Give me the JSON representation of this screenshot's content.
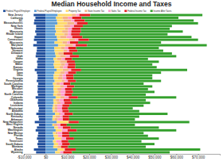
{
  "chart_data": {
    "type": "bar",
    "title": "Median Household Income and Taxes",
    "orientation": "horizontal",
    "stacked": true,
    "grid": false,
    "legend": "top",
    "categories": [
      "New Jersey",
      "California",
      "DC",
      "Massachusetts",
      "New York",
      "Illinois",
      "Minnesota",
      "Rhode Island",
      "Hawaii",
      "Connecticut",
      "Wisconsin",
      "Maryland",
      "Nebraska",
      "Vermont",
      "Delaware",
      "Utah",
      "Idaho",
      "Oregon",
      "Maine",
      "Kansas",
      "Virginia",
      "Iowa",
      "Ohio",
      "Georgia",
      "Pennsylvania",
      "South Carolina",
      "Michigan",
      "Missouri",
      "Arizona",
      "North Carolina",
      "Colorado",
      "Oklahoma",
      "Indiana",
      "Louisiana",
      "Mississippi",
      "Alabama",
      "North Dakota",
      "Kentucky",
      "Arkansas",
      "New Hampshire",
      "West Virginia",
      "Nevada",
      "Washington",
      "New Mexico",
      "Florida",
      "Texas",
      "Tennessee",
      "South Dakota",
      "Montana",
      "Alaska",
      "Wyoming"
    ],
    "series": [
      {
        "name": "Federal Payroll Employer",
        "color": "#1f4e9c",
        "values": [
          -5500,
          -4700,
          -5200,
          -5400,
          -4400,
          -4400,
          -4800,
          -4300,
          -5100,
          -5400,
          -4100,
          -5700,
          -4000,
          -4100,
          -4400,
          -4600,
          -3600,
          -4000,
          -3700,
          -3900,
          -5000,
          -4100,
          -3700,
          -3700,
          -4100,
          -3400,
          -3700,
          -3600,
          -3800,
          -3500,
          -4600,
          -3500,
          -3700,
          -3400,
          -3100,
          -3300,
          -4300,
          -3300,
          -3100,
          -5000,
          -3100,
          -4000,
          -4600,
          -3400,
          -3600,
          -4000,
          -3400,
          -3800,
          -3500,
          -5400,
          -4400
        ]
      },
      {
        "name": "Federal Payroll Employee",
        "color": "#5b9bd5",
        "values": [
          5500,
          4700,
          5200,
          5400,
          4400,
          4400,
          4800,
          4300,
          5100,
          5400,
          4100,
          5700,
          4000,
          4100,
          4400,
          4600,
          3600,
          4000,
          3700,
          3900,
          5000,
          4100,
          3700,
          3700,
          4100,
          3400,
          3700,
          3600,
          3800,
          3500,
          4600,
          3500,
          3700,
          3400,
          3100,
          3300,
          4300,
          3300,
          3100,
          5000,
          3100,
          4000,
          4600,
          3400,
          3600,
          4000,
          3400,
          3800,
          3500,
          5400,
          4400
        ]
      },
      {
        "name": "Property Tax",
        "color": "#ffd966",
        "values": [
          6500,
          3000,
          3000,
          4500,
          4000,
          4500,
          2800,
          4200,
          1500,
          5300,
          3600,
          3300,
          3000,
          4000,
          1400,
          2000,
          1700,
          2600,
          3300,
          2500,
          2800,
          2700,
          2500,
          2000,
          3200,
          1400,
          2900,
          1800,
          2000,
          1600,
          2100,
          1200,
          1600,
          800,
          1000,
          700,
          1800,
          1200,
          900,
          5600,
          800,
          1700,
          2800,
          1100,
          2100,
          3200,
          1400,
          2000,
          1900,
          3100,
          2200
        ]
      },
      {
        "name": "State Income Tax",
        "color": "#f4b183",
        "values": [
          2000,
          2500,
          3500,
          3300,
          2800,
          1500,
          2700,
          1800,
          3000,
          2800,
          2200,
          3600,
          1900,
          1700,
          2500,
          2700,
          2100,
          3200,
          1900,
          1700,
          2700,
          2000,
          1600,
          2100,
          1600,
          1800,
          1700,
          1800,
          1000,
          2000,
          2100,
          1500,
          1500,
          1200,
          1300,
          1500,
          700,
          2000,
          1600,
          0,
          1500,
          0,
          0,
          1000,
          0,
          0,
          0,
          0,
          1700,
          0,
          0
        ]
      },
      {
        "name": "Sales Tax",
        "color": "#ff99cc",
        "values": [
          1500,
          2000,
          1500,
          1200,
          1800,
          1700,
          1500,
          1400,
          2600,
          1500,
          1300,
          1200,
          1500,
          1000,
          0,
          1800,
          1500,
          0,
          1400,
          1900,
          1200,
          1500,
          1600,
          1700,
          1300,
          1600,
          1500,
          1700,
          2300,
          1700,
          1800,
          2100,
          1800,
          2300,
          2100,
          2200,
          1800,
          1300,
          2300,
          0,
          1400,
          2200,
          2700,
          2100,
          1900,
          2200,
          2500,
          1800,
          0,
          300,
          1500
        ]
      },
      {
        "name": "Federal Income Tax",
        "color": "#e31a1c",
        "values": [
          5000,
          4300,
          4800,
          4900,
          4100,
          4000,
          4400,
          3900,
          4700,
          4900,
          3700,
          5200,
          3600,
          3800,
          4100,
          4200,
          3300,
          3600,
          3400,
          3600,
          4600,
          3700,
          3400,
          3400,
          3700,
          3200,
          3400,
          3300,
          3500,
          3200,
          4200,
          3200,
          3400,
          3200,
          2800,
          3000,
          3900,
          3000,
          2900,
          4600,
          2900,
          3600,
          4200,
          3200,
          3300,
          3600,
          3100,
          3500,
          3200,
          5000,
          4000
        ]
      },
      {
        "name": "Income After Taxes",
        "color": "#33a02c",
        "values": [
          51500,
          44500,
          50000,
          50700,
          40900,
          40900,
          46800,
          40400,
          50100,
          50100,
          38100,
          55000,
          38000,
          39400,
          45600,
          44700,
          34800,
          38600,
          35300,
          37400,
          48700,
          39000,
          36200,
          36100,
          39100,
          33600,
          35800,
          34800,
          37400,
          34000,
          45200,
          34500,
          36000,
          34100,
          29700,
          32300,
          43500,
          32200,
          30200,
          50800,
          31300,
          40500,
          45700,
          34200,
          36100,
          39000,
          33600,
          38900,
          35700,
          57200,
          44900
        ]
      }
    ],
    "xlim": [
      -10000,
      80000
    ],
    "xticks": [
      {
        "value": -10000,
        "label": "-$10,000"
      },
      {
        "value": 0,
        "label": "$0"
      },
      {
        "value": 10000,
        "label": "$10,000"
      },
      {
        "value": 20000,
        "label": "$20,000"
      },
      {
        "value": 30000,
        "label": "$30,000"
      },
      {
        "value": 40000,
        "label": "$40,000"
      },
      {
        "value": 50000,
        "label": "$50,000"
      },
      {
        "value": 60000,
        "label": "$60,000"
      },
      {
        "value": 70000,
        "label": "$70,000"
      }
    ]
  }
}
